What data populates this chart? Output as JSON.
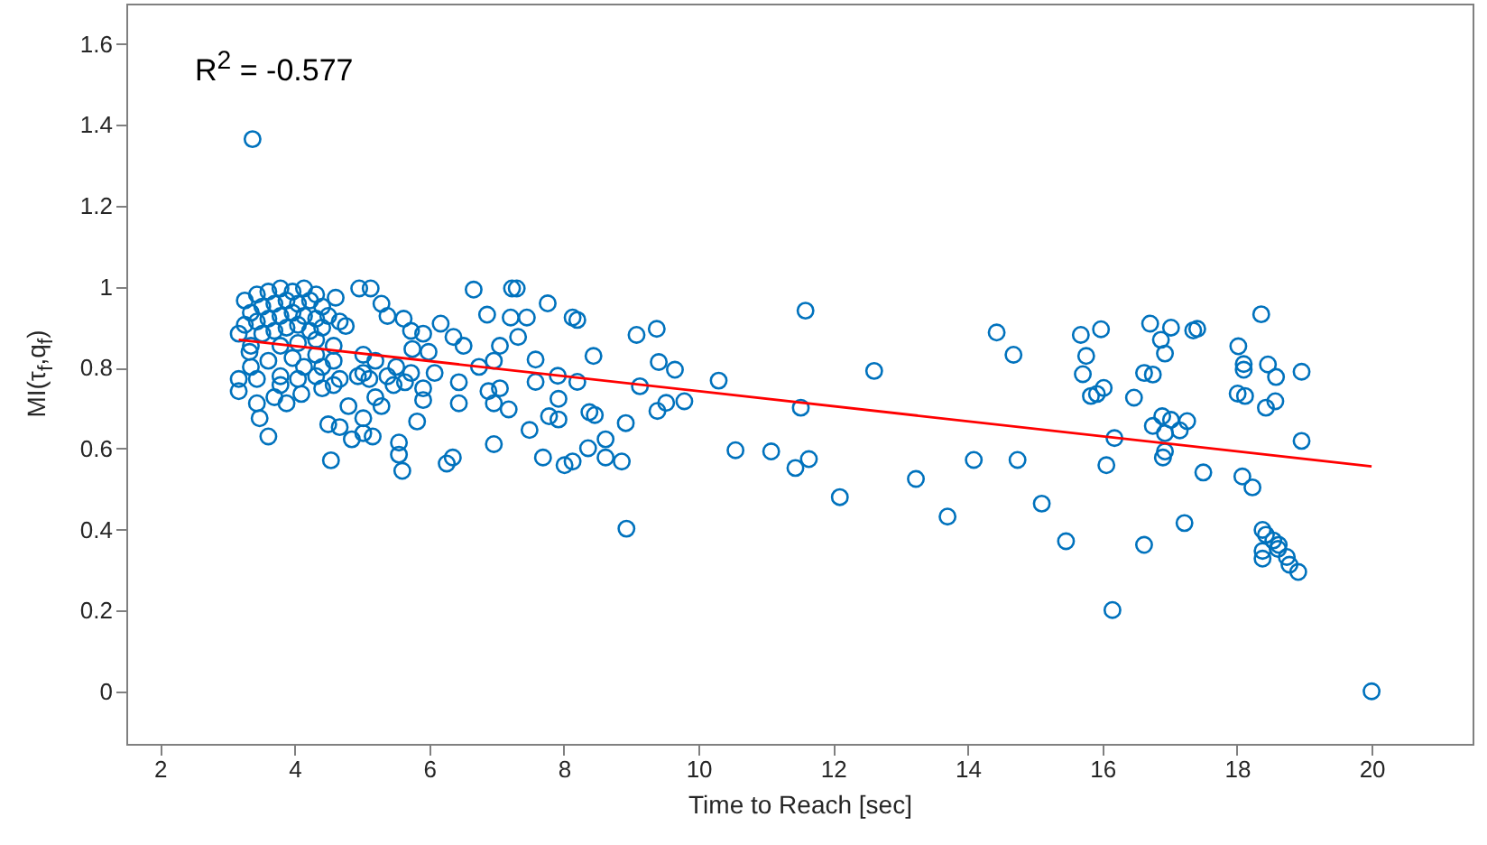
{
  "chart_data": {
    "type": "scatter",
    "xlabel": "Time to Reach [sec]",
    "ylabel": "MI(τ$_{f}$,q$_{f}$)",
    "annotations": [
      "R$^{2}$ = -0.577"
    ],
    "xlim": [
      1.5,
      21.5
    ],
    "xticks": [
      2,
      4,
      6,
      8,
      10,
      12,
      14,
      16,
      18,
      20
    ],
    "ylim": [
      -0.13,
      1.7
    ],
    "yticks": [
      0,
      0.2,
      0.4,
      0.6,
      0.8,
      1,
      1.2,
      1.4,
      1.6
    ],
    "grid": false,
    "series": [
      {
        "marker": "circle",
        "color": "#0072bd",
        "x": [
          3.375,
          4.96,
          5.13,
          6.66,
          7.23,
          4.61,
          5.29,
          6.86,
          7.21,
          5.38,
          5.62,
          6.17,
          4.76,
          5.73,
          5.91,
          6.36,
          6.51,
          7.05,
          5.99,
          5.75,
          7.32,
          3.17,
          3.33,
          5.02,
          5.2,
          5.51,
          5.02,
          5.38,
          5.73,
          6.08,
          6.74,
          6.96,
          3.17,
          3.44,
          3.79,
          4.14,
          4.41,
          4.58,
          4.67,
          4.94,
          5.11,
          5.47,
          5.64,
          5.91,
          6.44,
          6.88,
          7.05,
          7.18,
          3.17,
          3.44,
          3.7,
          3.88,
          4.1,
          4.41,
          4.8,
          5.2,
          5.29,
          5.91,
          6.44,
          6.96,
          3.48,
          3.61,
          4.5,
          4.67,
          5.02,
          5.02,
          5.16,
          4.85,
          5.82,
          5.55,
          5.55,
          5.6,
          4.54,
          6.26,
          6.35,
          6.96,
          3.26,
          3.44,
          3.61,
          3.79,
          3.97,
          4.14,
          4.32,
          3.35,
          3.52,
          3.7,
          3.88,
          4.05,
          4.23,
          4.41,
          3.26,
          3.44,
          3.61,
          3.79,
          3.97,
          4.14,
          4.32,
          4.5,
          3.52,
          3.7,
          3.88,
          4.05,
          4.23,
          4.41,
          4.67,
          3.35,
          3.79,
          4.05,
          4.32,
          4.58,
          3.61,
          3.97,
          4.32,
          4.58,
          3.35,
          3.79,
          4.05,
          4.32,
          7.3,
          7.76,
          7.45,
          8.13,
          8.2,
          7.58,
          8.44,
          9.08,
          9.38,
          11.59,
          7.91,
          7.58,
          8.2,
          9.41,
          9.65,
          9.13,
          10.3,
          12.61,
          7.92,
          7.78,
          7.92,
          8.38,
          8.46,
          9.39,
          9.52,
          9.79,
          11.52,
          7.49,
          8.92,
          8.62,
          8.36,
          7.69,
          8.01,
          8.13,
          8.62,
          8.86,
          10.55,
          11.08,
          11.44,
          11.64,
          12.1,
          13.23,
          8.93,
          14.43,
          14.68,
          15.68,
          15.98,
          15.76,
          15.71,
          16.02,
          15.83,
          15.92,
          16.47,
          16.71,
          17.02,
          16.87,
          16.93,
          17.35,
          17.41,
          16.62,
          16.75,
          18.36,
          18.02,
          18.1,
          18.1,
          18.46,
          18.58,
          18.96,
          18.01,
          18.12,
          18.43,
          18.57,
          16.89,
          16.75,
          17.02,
          17.26,
          17.15,
          16.93,
          16.18,
          16.93,
          16.9,
          18.96,
          14.09,
          14.74,
          16.06,
          17.5,
          18.08,
          18.23,
          13.7,
          15.1,
          15.46,
          16.62,
          17.22,
          18.38,
          18.43,
          18.54,
          18.62,
          18.61,
          18.38,
          18.38,
          18.74,
          18.78,
          18.91,
          16.15,
          20.0
        ],
        "values": [
          1.365,
          0.996,
          0.996,
          0.993,
          0.996,
          0.973,
          0.958,
          0.931,
          0.924,
          0.928,
          0.921,
          0.909,
          0.903,
          0.891,
          0.884,
          0.876,
          0.854,
          0.854,
          0.839,
          0.846,
          0.876,
          0.884,
          0.839,
          0.832,
          0.817,
          0.802,
          0.787,
          0.779,
          0.787,
          0.787,
          0.802,
          0.817,
          0.772,
          0.772,
          0.779,
          0.802,
          0.802,
          0.757,
          0.772,
          0.779,
          0.772,
          0.757,
          0.764,
          0.749,
          0.764,
          0.742,
          0.749,
          0.697,
          0.742,
          0.712,
          0.727,
          0.712,
          0.735,
          0.749,
          0.705,
          0.727,
          0.705,
          0.72,
          0.712,
          0.712,
          0.675,
          0.63,
          0.66,
          0.653,
          0.675,
          0.638,
          0.63,
          0.623,
          0.667,
          0.615,
          0.585,
          0.545,
          0.571,
          0.563,
          0.578,
          0.611,
          0.966,
          0.981,
          0.988,
          0.996,
          0.988,
          0.996,
          0.981,
          0.936,
          0.951,
          0.958,
          0.966,
          0.958,
          0.966,
          0.951,
          0.906,
          0.914,
          0.921,
          0.928,
          0.936,
          0.928,
          0.921,
          0.928,
          0.884,
          0.891,
          0.899,
          0.906,
          0.891,
          0.899,
          0.914,
          0.854,
          0.854,
          0.861,
          0.869,
          0.854,
          0.817,
          0.824,
          0.832,
          0.817,
          0.802,
          0.757,
          0.772,
          0.779,
          0.996,
          0.959,
          0.924,
          0.924,
          0.918,
          0.82,
          0.829,
          0.881,
          0.896,
          0.941,
          0.78,
          0.765,
          0.765,
          0.814,
          0.795,
          0.754,
          0.768,
          0.792,
          0.723,
          0.68,
          0.672,
          0.69,
          0.683,
          0.693,
          0.713,
          0.717,
          0.701,
          0.646,
          0.663,
          0.623,
          0.601,
          0.578,
          0.559,
          0.568,
          0.578,
          0.568,
          0.596,
          0.593,
          0.552,
          0.574,
          0.48,
          0.525,
          0.402,
          0.887,
          0.832,
          0.881,
          0.895,
          0.829,
          0.784,
          0.75,
          0.73,
          0.735,
          0.726,
          0.909,
          0.899,
          0.869,
          0.835,
          0.892,
          0.896,
          0.787,
          0.783,
          0.932,
          0.853,
          0.809,
          0.795,
          0.808,
          0.777,
          0.79,
          0.736,
          0.73,
          0.701,
          0.717,
          0.68,
          0.656,
          0.671,
          0.668,
          0.645,
          0.638,
          0.626,
          0.593,
          0.578,
          0.619,
          0.572,
          0.572,
          0.559,
          0.541,
          0.531,
          0.504,
          0.432,
          0.464,
          0.371,
          0.362,
          0.416,
          0.399,
          0.387,
          0.373,
          0.362,
          0.352,
          0.347,
          0.328,
          0.332,
          0.313,
          0.295,
          0.201,
          0.0
        ]
      },
      {
        "type": "line",
        "color": "#ff0000",
        "x": [
          3.17,
          20.0
        ],
        "values": [
          0.869,
          0.556
        ]
      }
    ]
  }
}
